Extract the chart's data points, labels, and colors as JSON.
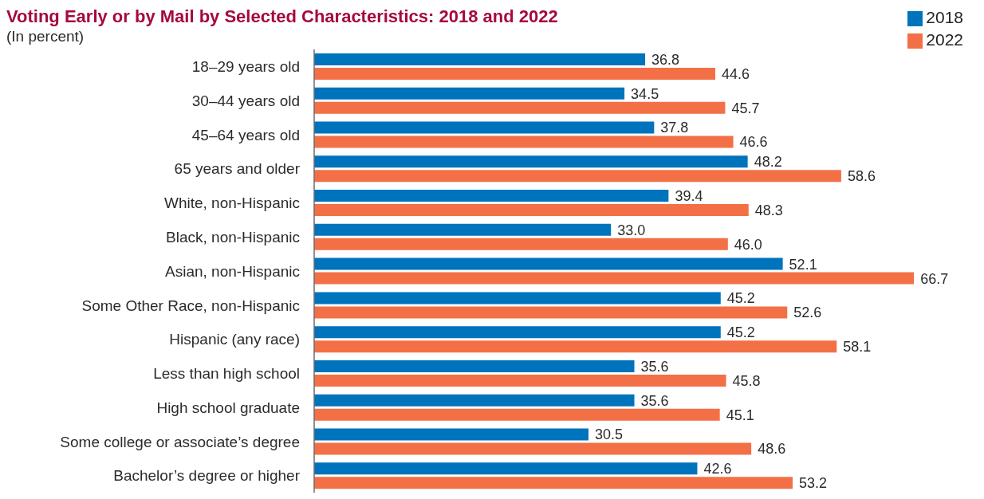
{
  "chart_data": {
    "type": "bar",
    "orientation": "horizontal",
    "title": "Voting Early or by Mail by Selected Characteristics: 2018 and 2022",
    "subtitle": "(In percent)",
    "categories": [
      "18–29 years old",
      "30–44 years old",
      "45–64 years old",
      "65 years and older",
      "White, non-Hispanic",
      "Black, non-Hispanic",
      "Asian, non-Hispanic",
      "Some Other Race, non-Hispanic",
      "Hispanic (any race)",
      "Less than high school",
      "High school graduate",
      "Some college or associate’s degree",
      "Bachelor’s degree or higher"
    ],
    "series": [
      {
        "name": "2018",
        "color": "#0073bd",
        "values": [
          36.8,
          34.5,
          37.8,
          48.2,
          39.4,
          33.0,
          52.1,
          45.2,
          45.2,
          35.6,
          35.6,
          30.5,
          42.6
        ],
        "value_labels": [
          "36.8",
          "34.5",
          "37.8",
          "48.2",
          "39.4",
          "33.0",
          "52.1",
          "45.2",
          "45.2",
          "35.6",
          "35.6",
          "30.5",
          "42.6"
        ]
      },
      {
        "name": "2022",
        "color": "#f37047",
        "values": [
          44.6,
          45.7,
          46.6,
          58.6,
          48.3,
          46.0,
          66.7,
          52.6,
          58.1,
          45.8,
          45.1,
          48.6,
          53.2
        ],
        "value_labels": [
          "44.6",
          "45.7",
          "46.6",
          "58.6",
          "48.3",
          "46.0",
          "66.7",
          "52.6",
          "58.1",
          "45.8",
          "45.1",
          "48.6",
          "53.2"
        ]
      }
    ],
    "legend": "top right",
    "tick_labels": "y"
  }
}
